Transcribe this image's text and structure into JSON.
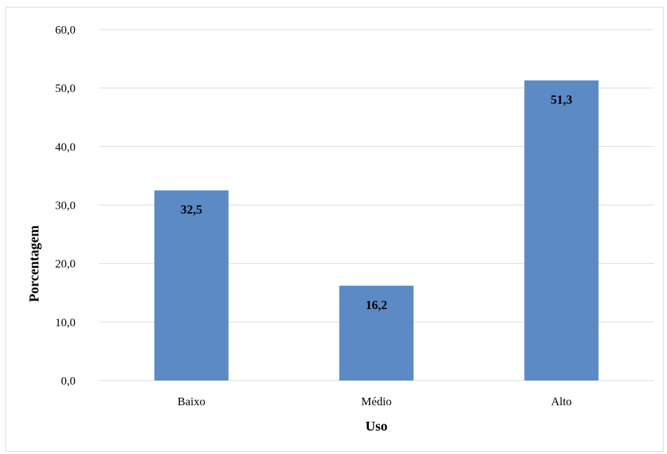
{
  "chart_data": {
    "type": "bar",
    "title": "",
    "xlabel": "Uso",
    "ylabel": "Porcentagem",
    "categories": [
      "Baixo",
      "Médio",
      "Alto"
    ],
    "values": [
      32.5,
      16.2,
      51.3
    ],
    "value_labels": [
      "32,5",
      "16,2",
      "51,3"
    ],
    "ylim": [
      0,
      60
    ],
    "yticks": [
      0,
      10,
      20,
      30,
      40,
      50,
      60
    ],
    "ytick_labels": [
      "0,0",
      "10,0",
      "20,0",
      "30,0",
      "40,0",
      "50,0",
      "60,0"
    ],
    "grid": true,
    "legend": "none",
    "bar_color": "#5b8ac5",
    "grid_color": "#d9d9d9"
  }
}
